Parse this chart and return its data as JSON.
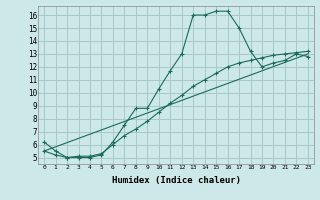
{
  "xlabel": "Humidex (Indice chaleur)",
  "background_color": "#cce8e8",
  "grid_color": "#aac8c8",
  "line_color": "#1a6b5a",
  "xlim": [
    -0.5,
    23.5
  ],
  "ylim": [
    4.5,
    16.7
  ],
  "xticks": [
    0,
    1,
    2,
    3,
    4,
    5,
    6,
    7,
    8,
    9,
    10,
    11,
    12,
    13,
    14,
    15,
    16,
    17,
    18,
    19,
    20,
    21,
    22,
    23
  ],
  "yticks": [
    5,
    6,
    7,
    8,
    9,
    10,
    11,
    12,
    13,
    14,
    15,
    16
  ],
  "line1_x": [
    0,
    1,
    2,
    3,
    4,
    5,
    6,
    7,
    8,
    9,
    10,
    11,
    12,
    13,
    14,
    15,
    16,
    17,
    18,
    19,
    20,
    21,
    22,
    23
  ],
  "line1_y": [
    6.2,
    5.5,
    5.0,
    5.0,
    5.0,
    5.2,
    6.2,
    7.5,
    8.8,
    8.8,
    10.3,
    11.7,
    13.0,
    16.0,
    16.0,
    16.3,
    16.3,
    15.0,
    13.2,
    12.0,
    12.3,
    12.5,
    13.0,
    12.8
  ],
  "line2_x": [
    0,
    23
  ],
  "line2_y": [
    5.5,
    13.0
  ],
  "line3_x": [
    0,
    1,
    2,
    3,
    4,
    5,
    6,
    7,
    8,
    9,
    10,
    11,
    12,
    13,
    14,
    15,
    16,
    17,
    18,
    19,
    20,
    21,
    22,
    23
  ],
  "line3_y": [
    5.5,
    5.2,
    5.0,
    5.1,
    5.1,
    5.3,
    6.0,
    6.7,
    7.2,
    7.8,
    8.5,
    9.2,
    9.8,
    10.5,
    11.0,
    11.5,
    12.0,
    12.3,
    12.5,
    12.7,
    12.9,
    13.0,
    13.1,
    13.2
  ]
}
